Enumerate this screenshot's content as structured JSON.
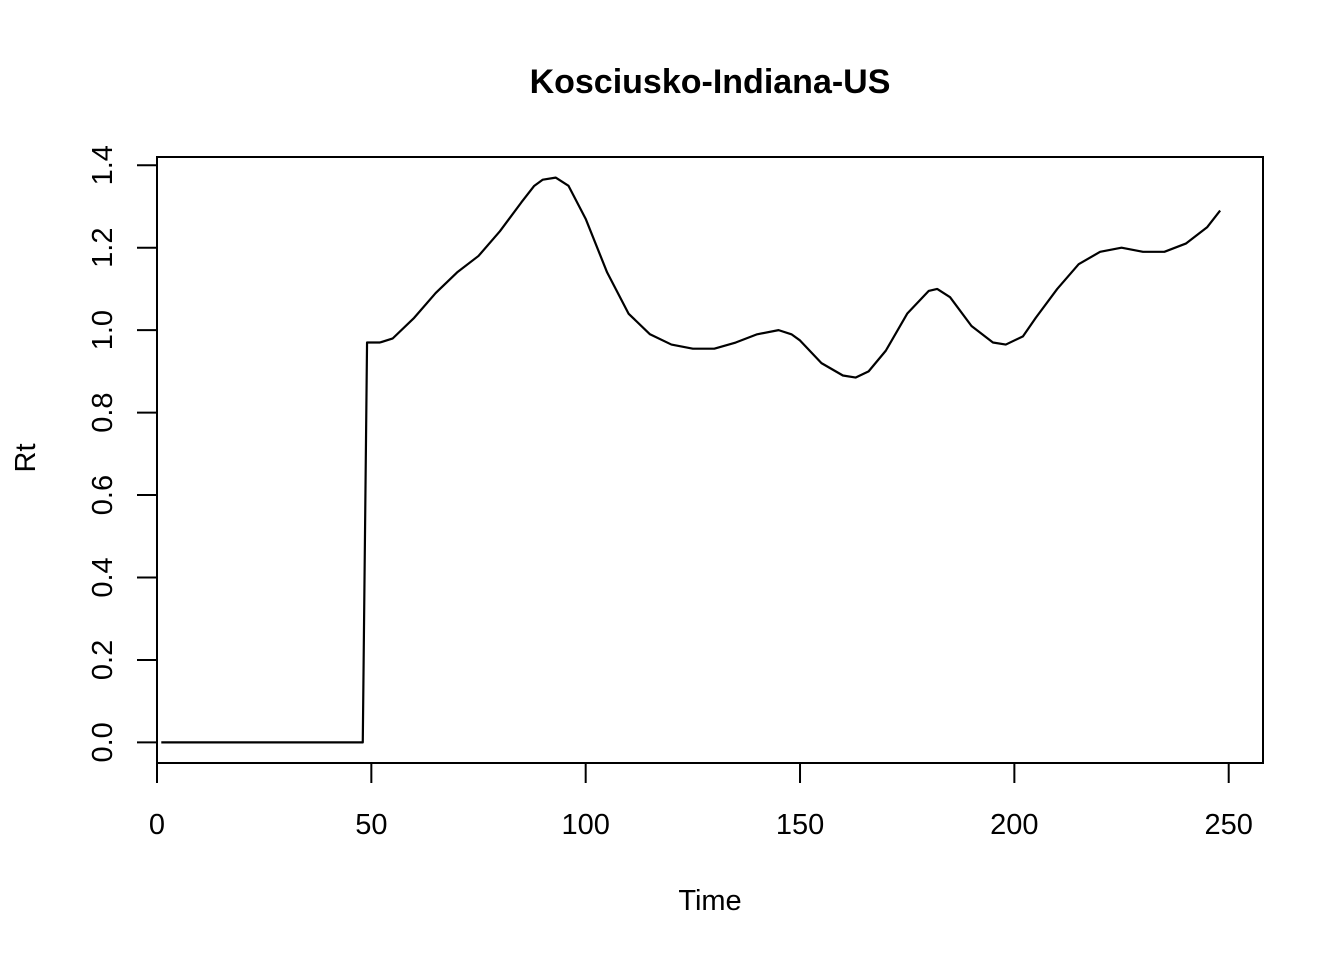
{
  "chart_data": {
    "type": "line",
    "title": "Kosciusko-Indiana-US",
    "xlabel": "Time",
    "ylabel": "Rt",
    "xlim": [
      0,
      258
    ],
    "ylim": [
      -0.05,
      1.42
    ],
    "xticks": [
      0,
      50,
      100,
      150,
      200,
      250
    ],
    "yticks": [
      0.0,
      0.2,
      0.4,
      0.6,
      0.8,
      1.0,
      1.2,
      1.4
    ],
    "xtick_labels": [
      "0",
      "50",
      "100",
      "150",
      "200",
      "250"
    ],
    "ytick_labels": [
      "0.0",
      "0.2",
      "0.4",
      "0.6",
      "0.8",
      "1.0",
      "1.2",
      "1.4"
    ],
    "grid": false,
    "series": [
      {
        "color": "#000000",
        "x": [
          1,
          10,
          20,
          30,
          40,
          48,
          49,
          50,
          52,
          55,
          60,
          65,
          70,
          75,
          80,
          85,
          88,
          90,
          93,
          96,
          100,
          105,
          110,
          115,
          120,
          125,
          130,
          135,
          140,
          145,
          148,
          150,
          155,
          160,
          163,
          166,
          170,
          175,
          180,
          182,
          185,
          190,
          195,
          198,
          202,
          205,
          210,
          215,
          220,
          225,
          230,
          235,
          240,
          245,
          248
        ],
        "y": [
          0.0,
          0.0,
          0.0,
          0.0,
          0.0,
          0.0,
          0.97,
          0.97,
          0.97,
          0.98,
          1.03,
          1.09,
          1.14,
          1.18,
          1.24,
          1.31,
          1.35,
          1.365,
          1.37,
          1.35,
          1.27,
          1.14,
          1.04,
          0.99,
          0.965,
          0.955,
          0.955,
          0.97,
          0.99,
          1.0,
          0.99,
          0.975,
          0.92,
          0.89,
          0.885,
          0.9,
          0.95,
          1.04,
          1.095,
          1.1,
          1.08,
          1.01,
          0.97,
          0.965,
          0.985,
          1.03,
          1.1,
          1.16,
          1.19,
          1.2,
          1.19,
          1.19,
          1.21,
          1.25,
          1.29
        ]
      }
    ]
  }
}
